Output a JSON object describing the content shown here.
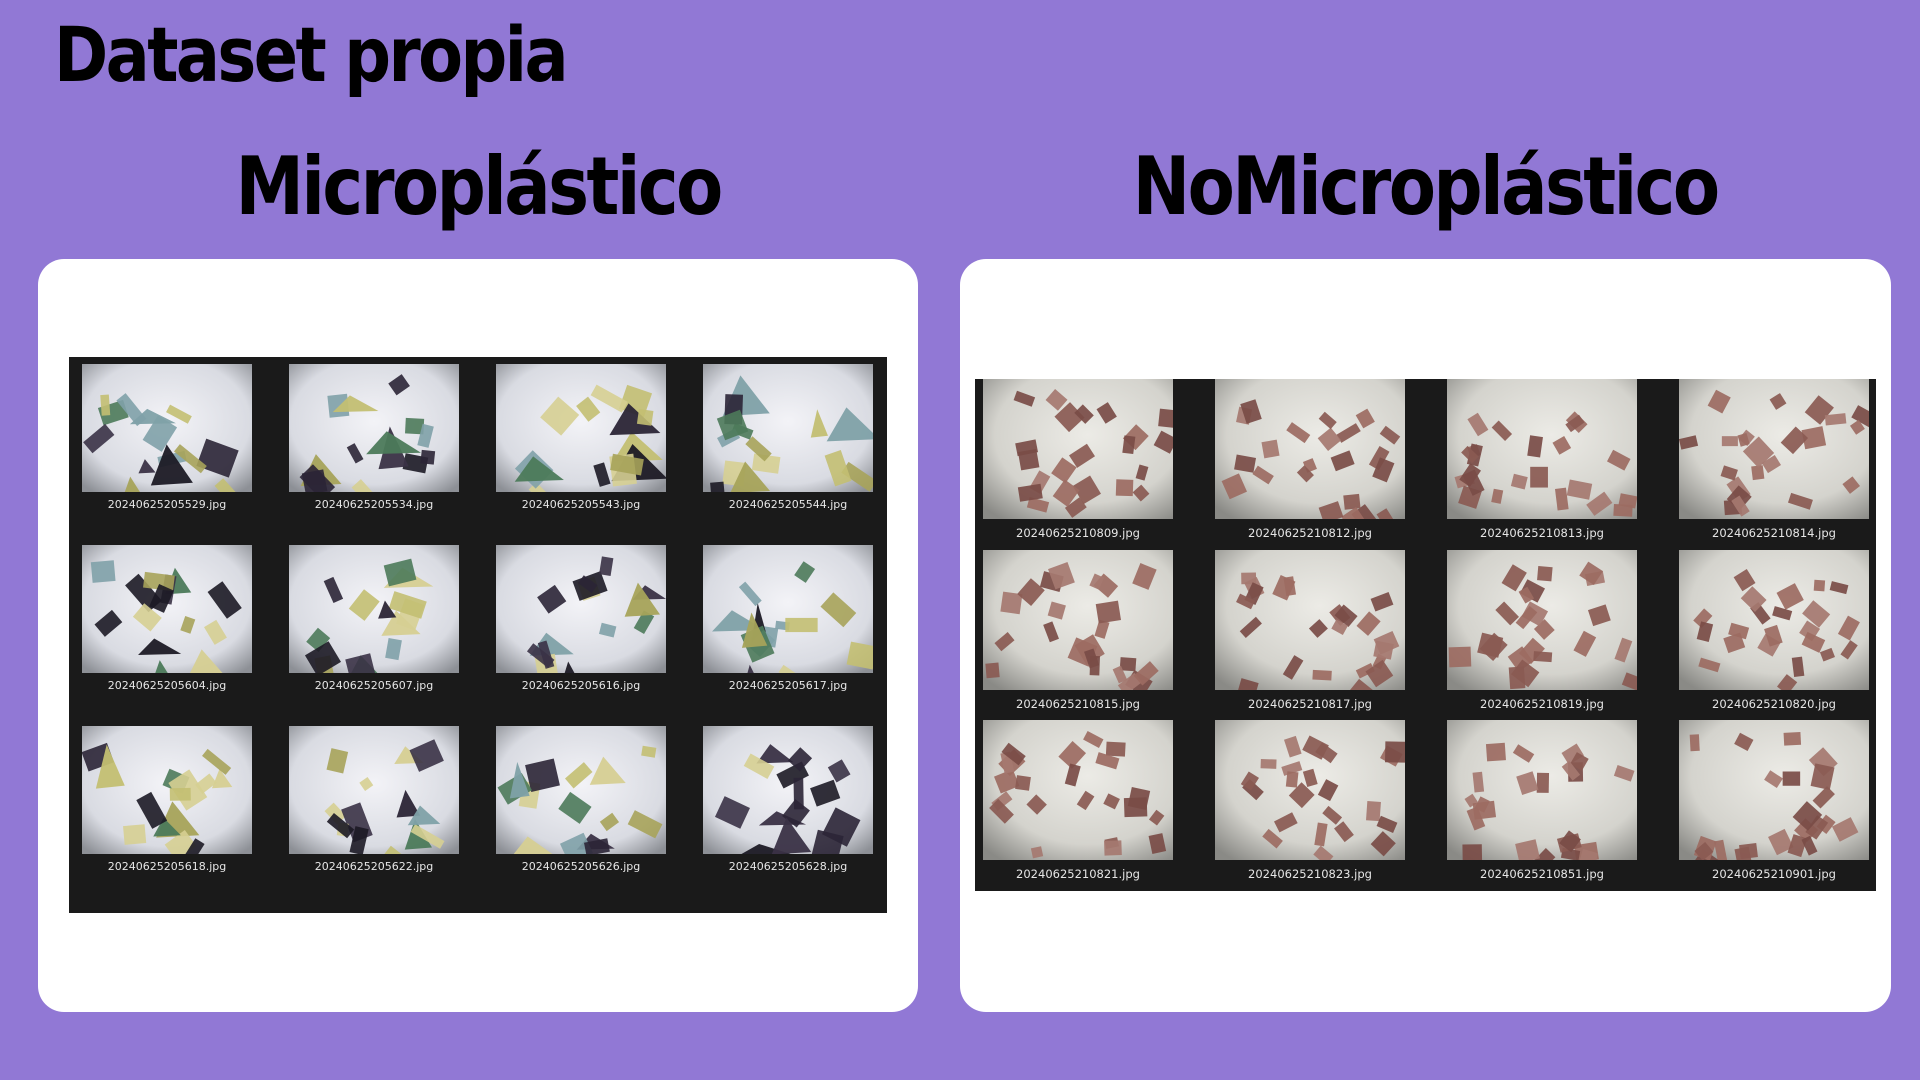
{
  "page": {
    "title": "Dataset propia"
  },
  "sections": [
    {
      "id": "micro",
      "heading": "Microplástico",
      "files": [
        "20240625205529.jpg",
        "20240625205534.jpg",
        "20240625205543.jpg",
        "20240625205544.jpg",
        "20240625205604.jpg",
        "20240625205607.jpg",
        "20240625205616.jpg",
        "20240625205617.jpg",
        "20240625205618.jpg",
        "20240625205622.jpg",
        "20240625205626.jpg",
        "20240625205628.jpg"
      ]
    },
    {
      "id": "nomicro",
      "heading": "NoMicroplástico",
      "files": [
        "20240625210809.jpg",
        "20240625210812.jpg",
        "20240625210813.jpg",
        "20240625210814.jpg",
        "20240625210815.jpg",
        "20240625210817.jpg",
        "20240625210819.jpg",
        "20240625210820.jpg",
        "20240625210821.jpg",
        "20240625210823.jpg",
        "20240625210851.jpg",
        "20240625210901.jpg"
      ]
    }
  ],
  "colors": {
    "background": "#9178d5",
    "card": "#ffffff",
    "gallery": "#1a1a1a"
  }
}
